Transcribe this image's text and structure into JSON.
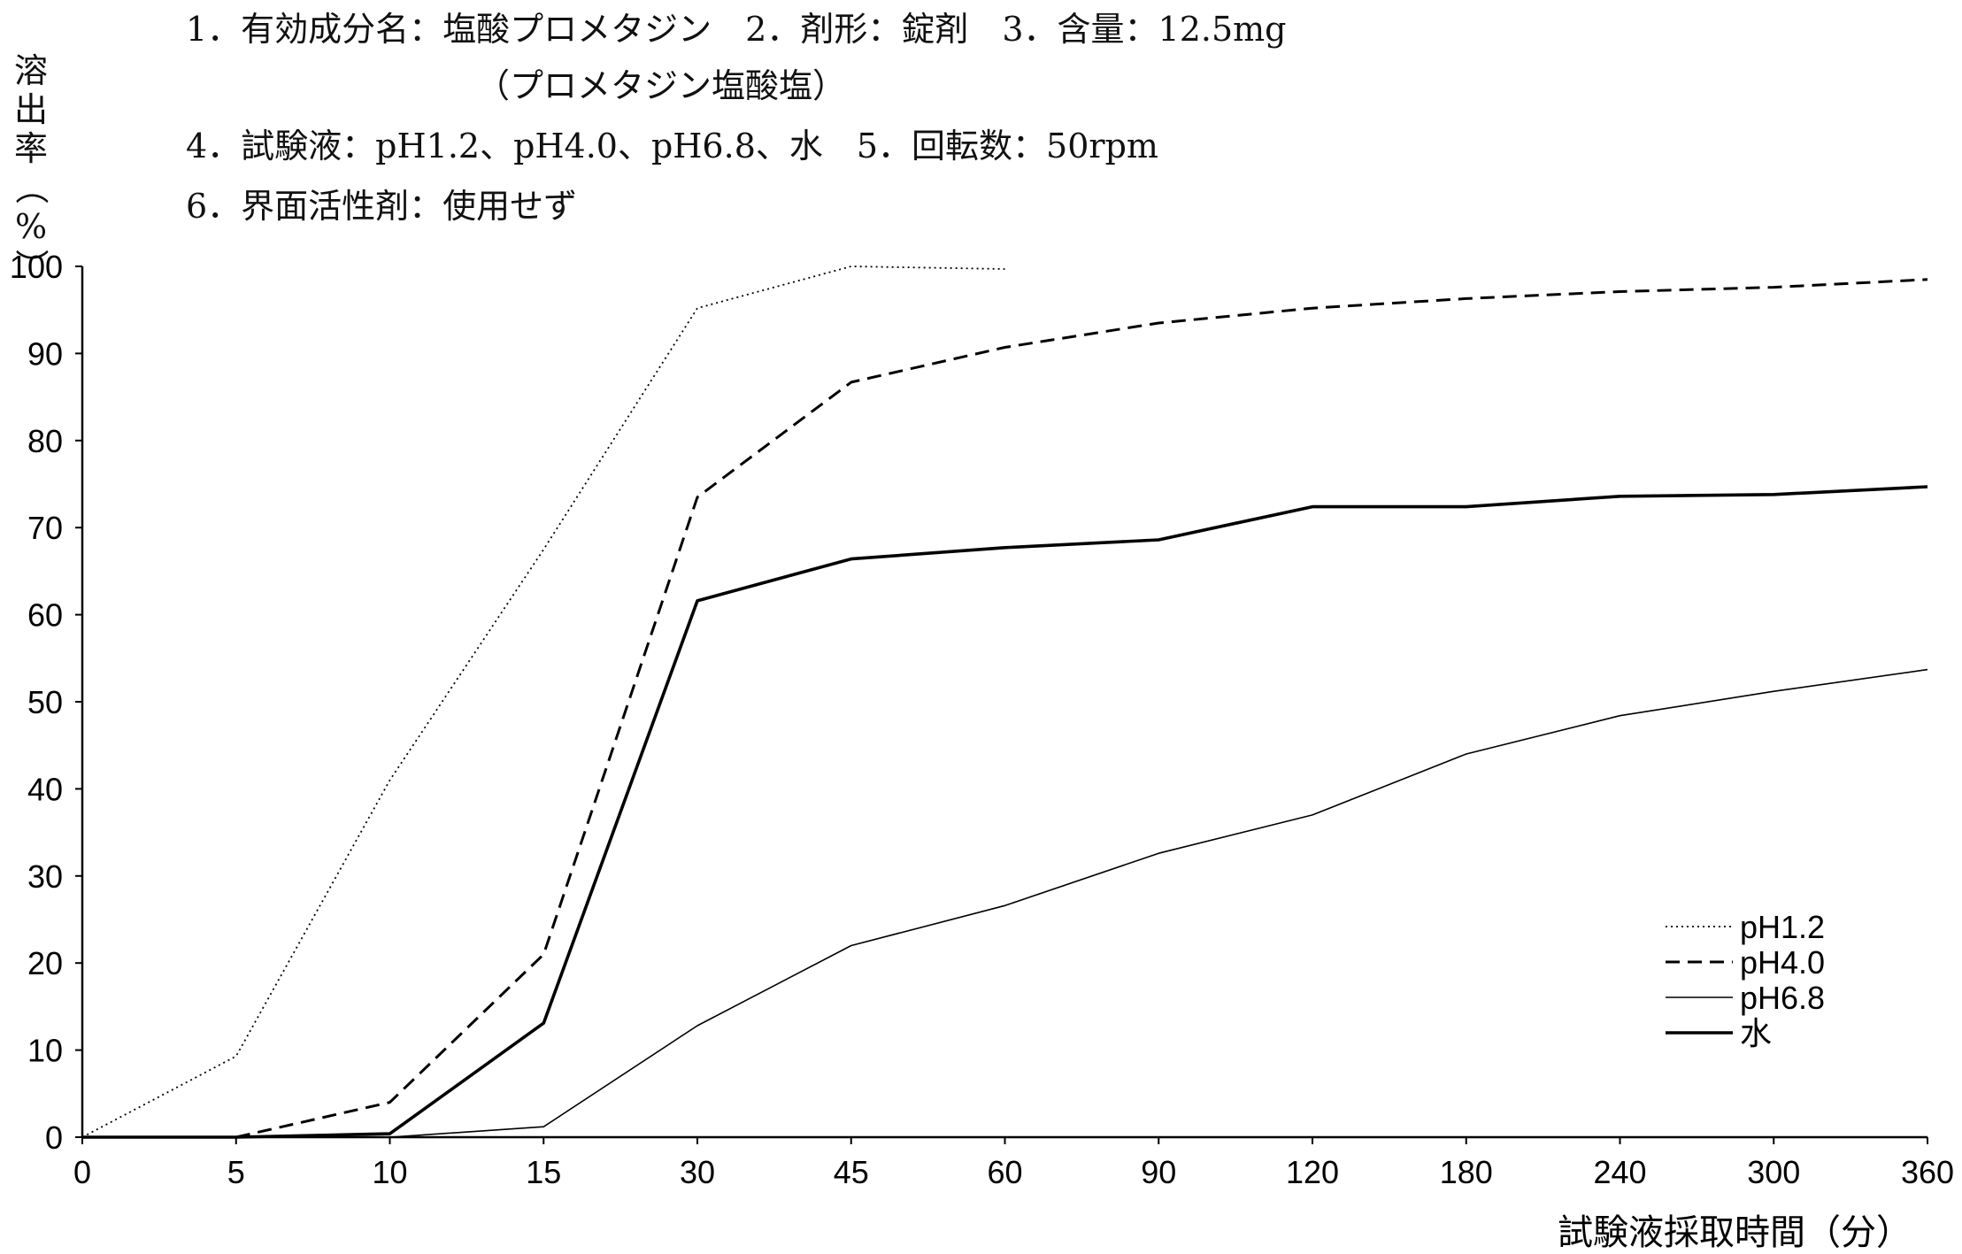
{
  "header": {
    "line1": "1．有効成分名：塩酸プロメタジン　2．剤形：錠剤　3．含量：12.5mg",
    "line1b": "（プロメタジン塩酸塩）",
    "line2": "4．試験液：pH1.2、pH4.0、pH6.8、水　5．回転数：50rpm",
    "line3": "6．界面活性剤：使用せず"
  },
  "chart_data": {
    "type": "line",
    "ylabel": "溶出率（%）",
    "xlabel": "試験液採取時間（分）",
    "categories": [
      "0",
      "5",
      "10",
      "15",
      "30",
      "45",
      "60",
      "90",
      "120",
      "180",
      "240",
      "300",
      "360"
    ],
    "yticks": [
      "0",
      "10",
      "20",
      "30",
      "40",
      "50",
      "60",
      "70",
      "80",
      "90",
      "100"
    ],
    "ylim": [
      0,
      100
    ],
    "grid": false,
    "legend_position": "bottom-right",
    "series": [
      {
        "name": "pH1.2",
        "style": "dotted",
        "values": [
          0,
          9.3,
          41,
          67.5,
          95.2,
          100,
          99.7,
          null,
          null,
          null,
          null,
          null,
          null
        ]
      },
      {
        "name": "pH4.0",
        "style": "dashed",
        "values": [
          null,
          0,
          4,
          21,
          73.5,
          86.7,
          90.7,
          93.5,
          95.2,
          96.3,
          97.1,
          97.6,
          98.5
        ]
      },
      {
        "name": "pH6.8",
        "style": "thin",
        "values": [
          0,
          0,
          0,
          1.2,
          12.8,
          22,
          26.6,
          32.6,
          37,
          44,
          48.4,
          51.2,
          53.7
        ]
      },
      {
        "name": "水",
        "style": "thick",
        "values": [
          0,
          0,
          0.4,
          13.1,
          61.6,
          66.4,
          67.7,
          68.6,
          72.4,
          72.4,
          73.6,
          73.8,
          74.7
        ]
      }
    ]
  }
}
